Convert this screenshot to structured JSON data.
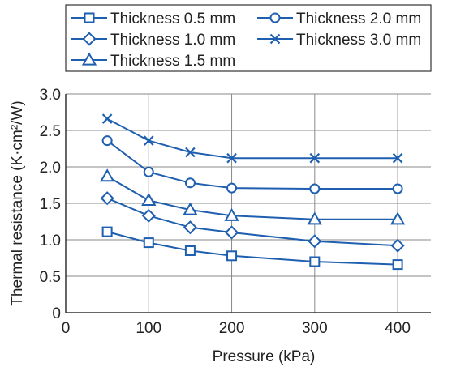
{
  "chart_data": {
    "type": "line",
    "title": "",
    "xlabel": "Pressure (kPa)",
    "ylabel": "Thermal resistance (K·cm²/W)",
    "xlim": [
      0,
      440
    ],
    "ylim": [
      0,
      3.0
    ],
    "xticks": [
      0,
      100,
      200,
      300,
      400
    ],
    "yticks": [
      0,
      0.5,
      1.0,
      1.5,
      2.0,
      2.5,
      3.0
    ],
    "xtick_labels": [
      "0",
      "100",
      "200",
      "300",
      "400"
    ],
    "ytick_labels": [
      "0",
      "0.5",
      "1.0",
      "1.5",
      "2.0",
      "2.5",
      "3.0"
    ],
    "grid": true,
    "legend_position": "top",
    "line_color": "#1f5fb0",
    "x": [
      50,
      100,
      150,
      200,
      300,
      400
    ],
    "series": [
      {
        "name": "Thickness 0.5 mm",
        "marker": "square",
        "values": [
          1.11,
          0.96,
          0.85,
          0.78,
          0.7,
          0.66
        ]
      },
      {
        "name": "Thickness 1.0 mm",
        "marker": "diamond",
        "values": [
          1.57,
          1.33,
          1.17,
          1.1,
          0.98,
          0.92
        ]
      },
      {
        "name": "Thickness 1.5 mm",
        "marker": "triangle",
        "values": [
          1.87,
          1.54,
          1.41,
          1.33,
          1.28,
          1.28
        ]
      },
      {
        "name": "Thickness 2.0 mm",
        "marker": "circle",
        "values": [
          2.36,
          1.93,
          1.78,
          1.71,
          1.7,
          1.7
        ]
      },
      {
        "name": "Thickness 3.0 mm",
        "marker": "x",
        "values": [
          2.66,
          2.36,
          2.2,
          2.12,
          2.12,
          2.12
        ]
      }
    ]
  }
}
